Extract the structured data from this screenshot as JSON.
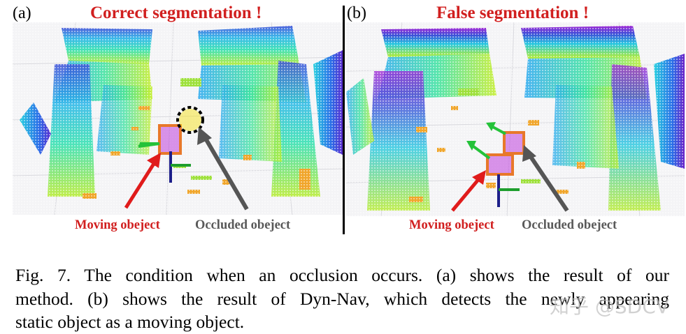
{
  "panel_a": {
    "label": "(a)",
    "title": "Correct segmentation !",
    "moving_label": "Moving obeject",
    "occluded_label": "Occluded obeject"
  },
  "panel_b": {
    "label": "(b)",
    "title": "False segmentation !",
    "moving_label": "Moving obeject",
    "occluded_label": "Occluded obeject"
  },
  "caption": {
    "line1": "Fig. 7.  The condition when an occlusion occurs. (a) shows the result of our",
    "line2": "method. (b) shows the result of Dyn-Nav, which detects the newly appearing",
    "line3": "static object as a moving object."
  },
  "watermark": "知乎 @SDCV",
  "colors": {
    "title_red": "#d11f1f",
    "arrow_red": "#e01b1b",
    "arrow_gray": "#555555",
    "box_orange": "#e8782a",
    "ring_yellow": "#f5e11c"
  }
}
